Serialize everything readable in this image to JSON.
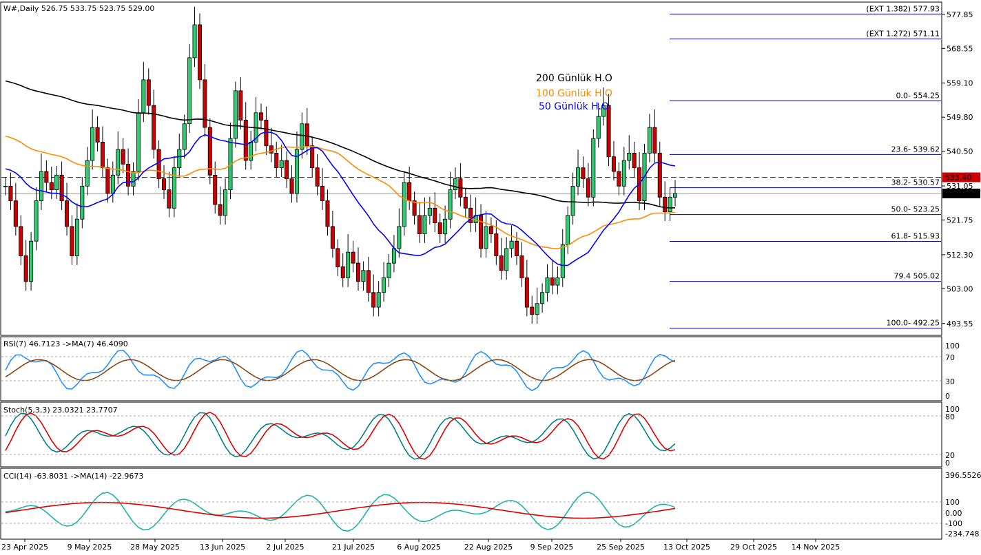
{
  "header": {
    "title": "W#,Daily  526.75 533.75 523.75 529.00"
  },
  "legend": [
    {
      "label": "200 Günlük H.O",
      "color": "#000000"
    },
    {
      "label": "100 Günlük H.O",
      "color": "#ff8c00"
    },
    {
      "label": "50 Günlük H.O",
      "color": "#0000ff"
    }
  ],
  "price_axis": {
    "ticks": [
      "577.85",
      "568.55",
      "559.10",
      "549.80",
      "540.50",
      "531.05",
      "521.75",
      "512.30",
      "503.00",
      "493.55"
    ],
    "current_price": "529.00",
    "line_price": "533.40"
  },
  "fib_levels": [
    {
      "label": "(EXT 1.382)  577.93",
      "value": 577.93
    },
    {
      "label": "(EXT 1.272)  571.11",
      "value": 571.11
    },
    {
      "label": "0.0- 554.25",
      "value": 554.25
    },
    {
      "label": "23.6- 539.62",
      "value": 539.62
    },
    {
      "label": "38.2- 530.57",
      "value": 530.57
    },
    {
      "label": "50.0- 523.25",
      "value": 523.25
    },
    {
      "label": "61.8- 515.93",
      "value": 515.93
    },
    {
      "label": "79.4 505.02",
      "value": 505.02
    },
    {
      "label": "100.0- 492.25",
      "value": 492.25
    }
  ],
  "rsi": {
    "title": "RSI(7) 46.7123  ->MA(7) 46.4090",
    "ticks": [
      "100",
      "70",
      "30",
      "0"
    ]
  },
  "stoch": {
    "title": "Stoch(5,3,3) 23.0321 23.7707",
    "ticks": [
      "100",
      "80",
      "20",
      "0"
    ]
  },
  "cci": {
    "title": "CCI(14) -63.8031  ->MA(14) -22.9673",
    "ticks": [
      "396.5526",
      "100",
      "0.00",
      "-100",
      "-234.748"
    ]
  },
  "dates": [
    "23 Apr 2025",
    "9 May 2025",
    "28 May 2025",
    "13 Jun 2025",
    "2 Jul 2025",
    "21 Jul 2025",
    "6 Aug 2025",
    "22 Aug 2025",
    "9 Sep 2025",
    "25 Sep 2025",
    "13 Oct 2025",
    "29 Oct 2025",
    "14 Nov 2025"
  ],
  "colors": {
    "up": "#2ecc71",
    "down": "#cc0000",
    "ma200": "#000000",
    "ma100": "#ff8c00",
    "ma50": "#0000ff",
    "rsi": "#1e90ff",
    "rsi_ma": "#8b4513",
    "stoch_k": "#008080",
    "stoch_d": "#dd0000",
    "cci": "#20b2aa",
    "cci_ma": "#dd0000"
  },
  "chart_data": {
    "type": "candlestick",
    "symbol": "W#",
    "timeframe": "Daily",
    "ohlc_last": {
      "open": 526.75,
      "high": 533.75,
      "low": 523.75,
      "close": 529.0
    },
    "closes": [
      531,
      527,
      520,
      512,
      505,
      516,
      527,
      535,
      532,
      530,
      534,
      527,
      520,
      512,
      522,
      531,
      538,
      547,
      543,
      536,
      529,
      534,
      541,
      537,
      531,
      535,
      551,
      560,
      553,
      541,
      533,
      530,
      525,
      536,
      541,
      548,
      566,
      575,
      560,
      547,
      534,
      526,
      523,
      530,
      544,
      557,
      549,
      538,
      543,
      551,
      549,
      542,
      540,
      536,
      538,
      533,
      529,
      541,
      548,
      542,
      536,
      531,
      527,
      520,
      514,
      509,
      506,
      513,
      510,
      505,
      508,
      502,
      498,
      502,
      506,
      510,
      514,
      520,
      532,
      527,
      523,
      518,
      523,
      525,
      521,
      518,
      522,
      530,
      533,
      528,
      525,
      521,
      523,
      514,
      520,
      518,
      512,
      508,
      514,
      516,
      512,
      506,
      498,
      496,
      499,
      502,
      506,
      504,
      506,
      515,
      523,
      531,
      536,
      533,
      528,
      544,
      550,
      553,
      539,
      535,
      531,
      538,
      540,
      536,
      527,
      540,
      547,
      540,
      528,
      524,
      528,
      529
    ],
    "price_range": [
      490.5,
      581.0
    ]
  }
}
